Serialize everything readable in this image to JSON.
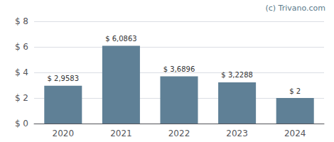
{
  "chart_data": {
    "type": "bar",
    "categories": [
      "2020",
      "2021",
      "2022",
      "2023",
      "2024"
    ],
    "values": [
      2.9583,
      6.0863,
      3.6896,
      3.2288,
      2.0
    ],
    "value_labels": [
      "$ 2,9583",
      "$ 6,0863",
      "$ 3,6896",
      "$ 3,2288",
      "$ 2"
    ],
    "data_labels": true,
    "color": "#5f8096",
    "ylim": [
      0,
      8
    ],
    "yticks": [
      {
        "value": 0,
        "label": "$ 0"
      },
      {
        "value": 2,
        "label": "$ 2"
      },
      {
        "value": 4,
        "label": "$ 4"
      },
      {
        "value": 6,
        "label": "$ 6"
      },
      {
        "value": 8,
        "label": "$ 8"
      }
    ],
    "grid": true,
    "annotations": [
      "(c) Trivano.com"
    ]
  }
}
